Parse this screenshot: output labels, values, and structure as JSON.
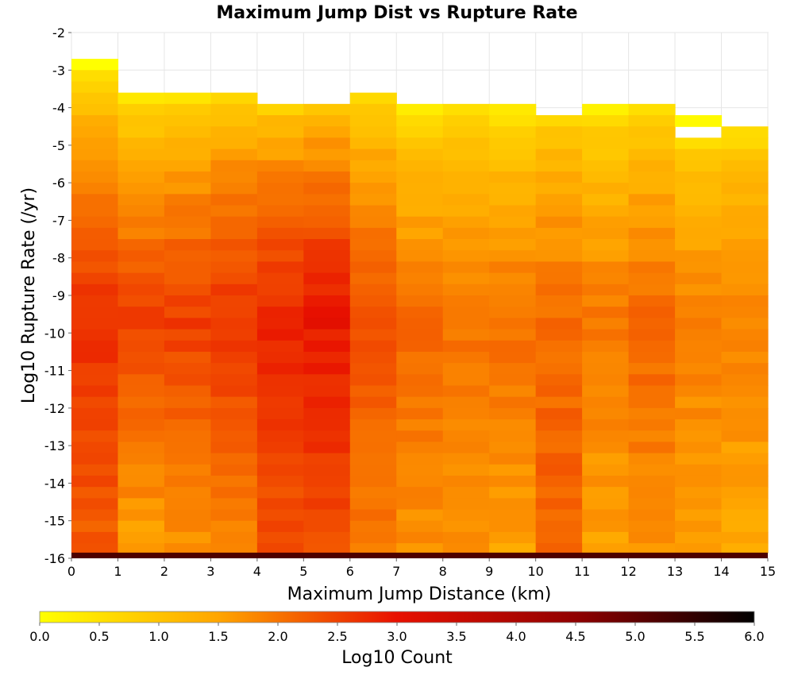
{
  "chart_data": {
    "type": "heatmap",
    "title": "Maximum Jump Dist vs Rupture Rate",
    "xlabel": "Maximum Jump Distance (km)",
    "ylabel": "Log10 Rupture Rate (/yr)",
    "xlim": [
      0,
      15
    ],
    "ylim": [
      -16,
      -2
    ],
    "x_ticks": [
      "0",
      "1",
      "2",
      "3",
      "4",
      "5",
      "6",
      "7",
      "8",
      "9",
      "10",
      "11",
      "12",
      "13",
      "14",
      "15"
    ],
    "y_ticks": [
      "-2",
      "-3",
      "-4",
      "-5",
      "-6",
      "-7",
      "-8",
      "-9",
      "-10",
      "-11",
      "-12",
      "-13",
      "-14",
      "-15",
      "-16"
    ],
    "grid": true,
    "x_bin_width_km": 1,
    "y_bin_height": 0.3,
    "colorbar": {
      "label": "Log10 Count",
      "range": [
        0,
        6
      ],
      "ticks": [
        "0.0",
        "0.5",
        "1.0",
        "1.5",
        "2.0",
        "2.5",
        "3.0",
        "3.5",
        "4.0",
        "4.5",
        "5.0",
        "5.5",
        "6.0"
      ],
      "stops": [
        {
          "value": 0.0,
          "color": "#ffff00"
        },
        {
          "value": 1.5,
          "color": "#ffa500"
        },
        {
          "value": 3.0,
          "color": "#e81000"
        },
        {
          "value": 4.5,
          "color": "#900000"
        },
        {
          "value": 6.0,
          "color": "#000000"
        }
      ],
      "placement": "bottom"
    },
    "columns": [
      {
        "x0": 0,
        "x1": 1,
        "top": -2.7,
        "v_top": 0.1,
        "v_mid": 2.75,
        "v_bot": 2.2
      },
      {
        "x0": 1,
        "x1": 2,
        "top": -3.6,
        "v_top": 0.3,
        "v_mid": 2.5,
        "v_bot": 1.5
      },
      {
        "x0": 2,
        "x1": 3,
        "top": -3.6,
        "v_top": 0.4,
        "v_mid": 2.55,
        "v_bot": 1.6
      },
      {
        "x0": 3,
        "x1": 4,
        "top": -3.6,
        "v_top": 0.6,
        "v_mid": 2.65,
        "v_bot": 1.8
      },
      {
        "x0": 4,
        "x1": 5,
        "top": -3.9,
        "v_top": 0.7,
        "v_mid": 2.8,
        "v_bot": 2.3
      },
      {
        "x0": 5,
        "x1": 6,
        "top": -3.9,
        "v_top": 0.8,
        "v_mid": 2.95,
        "v_bot": 2.4
      },
      {
        "x0": 6,
        "x1": 7,
        "top": -3.6,
        "v_top": 0.5,
        "v_mid": 2.4,
        "v_bot": 1.9
      },
      {
        "x0": 7,
        "x1": 8,
        "top": -3.9,
        "v_top": 0.2,
        "v_mid": 2.1,
        "v_bot": 1.7
      },
      {
        "x0": 8,
        "x1": 9,
        "top": -3.9,
        "v_top": 0.4,
        "v_mid": 2.0,
        "v_bot": 1.7
      },
      {
        "x0": 9,
        "x1": 10,
        "top": -3.9,
        "v_top": 0.3,
        "v_mid": 2.05,
        "v_bot": 1.5
      },
      {
        "x0": 10,
        "x1": 11,
        "top": -4.2,
        "v_top": 0.6,
        "v_mid": 2.1,
        "v_bot": 2.2
      },
      {
        "x0": 11,
        "x1": 12,
        "top": -3.9,
        "v_top": 0.3,
        "v_mid": 1.95,
        "v_bot": 1.5
      },
      {
        "x0": 12,
        "x1": 13,
        "top": -3.9,
        "v_top": 0.4,
        "v_mid": 2.15,
        "v_bot": 1.7
      },
      {
        "x0": 13,
        "x1": 14,
        "top": -4.2,
        "v_top": 0.2,
        "v_mid": 1.9,
        "v_bot": 1.5,
        "gap": [
          -4.7,
          -4.5
        ]
      },
      {
        "x0": 14,
        "x1": 15,
        "top": -4.5,
        "v_top": 0.5,
        "v_mid": 1.9,
        "v_bot": 1.4
      }
    ],
    "bottom_row": {
      "y0": -16,
      "y1": -15.85,
      "value": 5.2
    }
  }
}
